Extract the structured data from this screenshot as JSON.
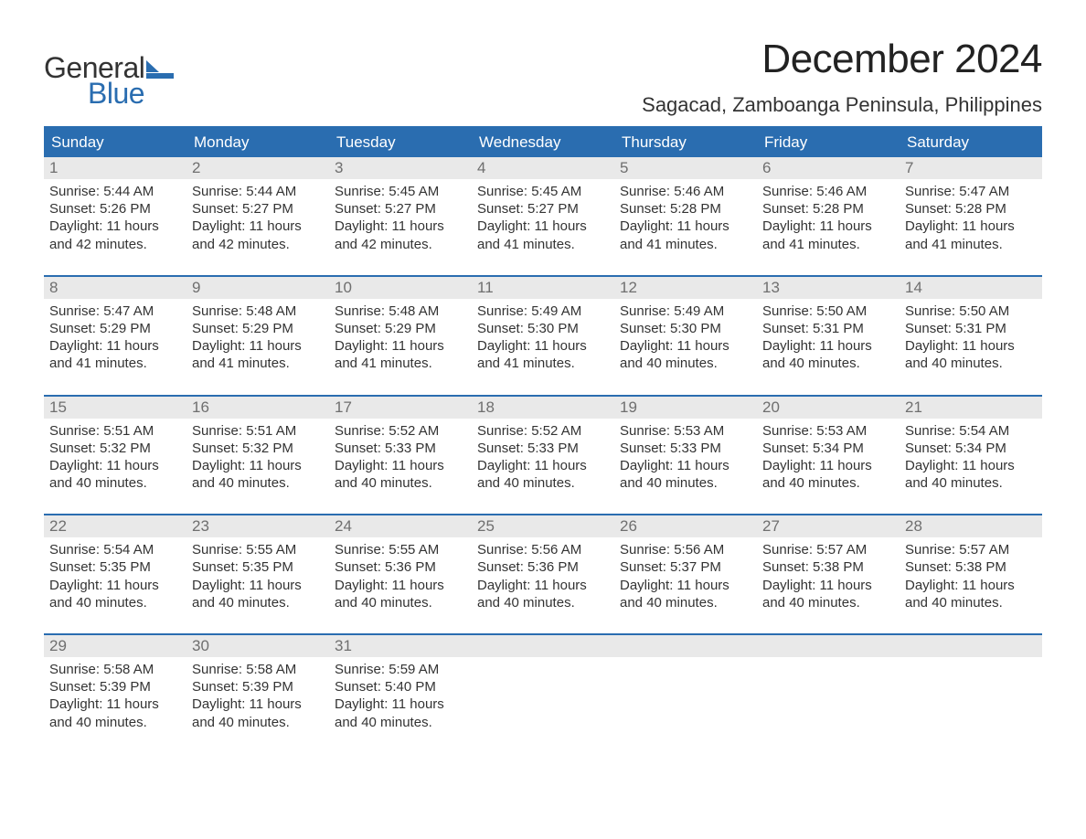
{
  "logo": {
    "general": "General",
    "blue": "Blue",
    "mark_color": "#2a6db0"
  },
  "title": "December 2024",
  "location": "Sagacad, Zamboanga Peninsula, Philippines",
  "colors": {
    "header_bg": "#2a6db0",
    "header_text": "#ffffff",
    "daynum_bg": "#e9e9e9",
    "daynum_text": "#6f6f6f",
    "body_text": "#333333",
    "page_bg": "#ffffff",
    "rule": "#2a6db0"
  },
  "typography": {
    "title_fontsize": 44,
    "location_fontsize": 22,
    "dayhead_fontsize": 17,
    "daynum_fontsize": 17,
    "body_fontsize": 15
  },
  "day_headers": [
    "Sunday",
    "Monday",
    "Tuesday",
    "Wednesday",
    "Thursday",
    "Friday",
    "Saturday"
  ],
  "weeks": [
    [
      {
        "n": "1",
        "sunrise": "Sunrise: 5:44 AM",
        "sunset": "Sunset: 5:26 PM",
        "d1": "Daylight: 11 hours",
        "d2": "and 42 minutes."
      },
      {
        "n": "2",
        "sunrise": "Sunrise: 5:44 AM",
        "sunset": "Sunset: 5:27 PM",
        "d1": "Daylight: 11 hours",
        "d2": "and 42 minutes."
      },
      {
        "n": "3",
        "sunrise": "Sunrise: 5:45 AM",
        "sunset": "Sunset: 5:27 PM",
        "d1": "Daylight: 11 hours",
        "d2": "and 42 minutes."
      },
      {
        "n": "4",
        "sunrise": "Sunrise: 5:45 AM",
        "sunset": "Sunset: 5:27 PM",
        "d1": "Daylight: 11 hours",
        "d2": "and 41 minutes."
      },
      {
        "n": "5",
        "sunrise": "Sunrise: 5:46 AM",
        "sunset": "Sunset: 5:28 PM",
        "d1": "Daylight: 11 hours",
        "d2": "and 41 minutes."
      },
      {
        "n": "6",
        "sunrise": "Sunrise: 5:46 AM",
        "sunset": "Sunset: 5:28 PM",
        "d1": "Daylight: 11 hours",
        "d2": "and 41 minutes."
      },
      {
        "n": "7",
        "sunrise": "Sunrise: 5:47 AM",
        "sunset": "Sunset: 5:28 PM",
        "d1": "Daylight: 11 hours",
        "d2": "and 41 minutes."
      }
    ],
    [
      {
        "n": "8",
        "sunrise": "Sunrise: 5:47 AM",
        "sunset": "Sunset: 5:29 PM",
        "d1": "Daylight: 11 hours",
        "d2": "and 41 minutes."
      },
      {
        "n": "9",
        "sunrise": "Sunrise: 5:48 AM",
        "sunset": "Sunset: 5:29 PM",
        "d1": "Daylight: 11 hours",
        "d2": "and 41 minutes."
      },
      {
        "n": "10",
        "sunrise": "Sunrise: 5:48 AM",
        "sunset": "Sunset: 5:29 PM",
        "d1": "Daylight: 11 hours",
        "d2": "and 41 minutes."
      },
      {
        "n": "11",
        "sunrise": "Sunrise: 5:49 AM",
        "sunset": "Sunset: 5:30 PM",
        "d1": "Daylight: 11 hours",
        "d2": "and 41 minutes."
      },
      {
        "n": "12",
        "sunrise": "Sunrise: 5:49 AM",
        "sunset": "Sunset: 5:30 PM",
        "d1": "Daylight: 11 hours",
        "d2": "and 40 minutes."
      },
      {
        "n": "13",
        "sunrise": "Sunrise: 5:50 AM",
        "sunset": "Sunset: 5:31 PM",
        "d1": "Daylight: 11 hours",
        "d2": "and 40 minutes."
      },
      {
        "n": "14",
        "sunrise": "Sunrise: 5:50 AM",
        "sunset": "Sunset: 5:31 PM",
        "d1": "Daylight: 11 hours",
        "d2": "and 40 minutes."
      }
    ],
    [
      {
        "n": "15",
        "sunrise": "Sunrise: 5:51 AM",
        "sunset": "Sunset: 5:32 PM",
        "d1": "Daylight: 11 hours",
        "d2": "and 40 minutes."
      },
      {
        "n": "16",
        "sunrise": "Sunrise: 5:51 AM",
        "sunset": "Sunset: 5:32 PM",
        "d1": "Daylight: 11 hours",
        "d2": "and 40 minutes."
      },
      {
        "n": "17",
        "sunrise": "Sunrise: 5:52 AM",
        "sunset": "Sunset: 5:33 PM",
        "d1": "Daylight: 11 hours",
        "d2": "and 40 minutes."
      },
      {
        "n": "18",
        "sunrise": "Sunrise: 5:52 AM",
        "sunset": "Sunset: 5:33 PM",
        "d1": "Daylight: 11 hours",
        "d2": "and 40 minutes."
      },
      {
        "n": "19",
        "sunrise": "Sunrise: 5:53 AM",
        "sunset": "Sunset: 5:33 PM",
        "d1": "Daylight: 11 hours",
        "d2": "and 40 minutes."
      },
      {
        "n": "20",
        "sunrise": "Sunrise: 5:53 AM",
        "sunset": "Sunset: 5:34 PM",
        "d1": "Daylight: 11 hours",
        "d2": "and 40 minutes."
      },
      {
        "n": "21",
        "sunrise": "Sunrise: 5:54 AM",
        "sunset": "Sunset: 5:34 PM",
        "d1": "Daylight: 11 hours",
        "d2": "and 40 minutes."
      }
    ],
    [
      {
        "n": "22",
        "sunrise": "Sunrise: 5:54 AM",
        "sunset": "Sunset: 5:35 PM",
        "d1": "Daylight: 11 hours",
        "d2": "and 40 minutes."
      },
      {
        "n": "23",
        "sunrise": "Sunrise: 5:55 AM",
        "sunset": "Sunset: 5:35 PM",
        "d1": "Daylight: 11 hours",
        "d2": "and 40 minutes."
      },
      {
        "n": "24",
        "sunrise": "Sunrise: 5:55 AM",
        "sunset": "Sunset: 5:36 PM",
        "d1": "Daylight: 11 hours",
        "d2": "and 40 minutes."
      },
      {
        "n": "25",
        "sunrise": "Sunrise: 5:56 AM",
        "sunset": "Sunset: 5:36 PM",
        "d1": "Daylight: 11 hours",
        "d2": "and 40 minutes."
      },
      {
        "n": "26",
        "sunrise": "Sunrise: 5:56 AM",
        "sunset": "Sunset: 5:37 PM",
        "d1": "Daylight: 11 hours",
        "d2": "and 40 minutes."
      },
      {
        "n": "27",
        "sunrise": "Sunrise: 5:57 AM",
        "sunset": "Sunset: 5:38 PM",
        "d1": "Daylight: 11 hours",
        "d2": "and 40 minutes."
      },
      {
        "n": "28",
        "sunrise": "Sunrise: 5:57 AM",
        "sunset": "Sunset: 5:38 PM",
        "d1": "Daylight: 11 hours",
        "d2": "and 40 minutes."
      }
    ],
    [
      {
        "n": "29",
        "sunrise": "Sunrise: 5:58 AM",
        "sunset": "Sunset: 5:39 PM",
        "d1": "Daylight: 11 hours",
        "d2": "and 40 minutes."
      },
      {
        "n": "30",
        "sunrise": "Sunrise: 5:58 AM",
        "sunset": "Sunset: 5:39 PM",
        "d1": "Daylight: 11 hours",
        "d2": "and 40 minutes."
      },
      {
        "n": "31",
        "sunrise": "Sunrise: 5:59 AM",
        "sunset": "Sunset: 5:40 PM",
        "d1": "Daylight: 11 hours",
        "d2": "and 40 minutes."
      },
      null,
      null,
      null,
      null
    ]
  ]
}
